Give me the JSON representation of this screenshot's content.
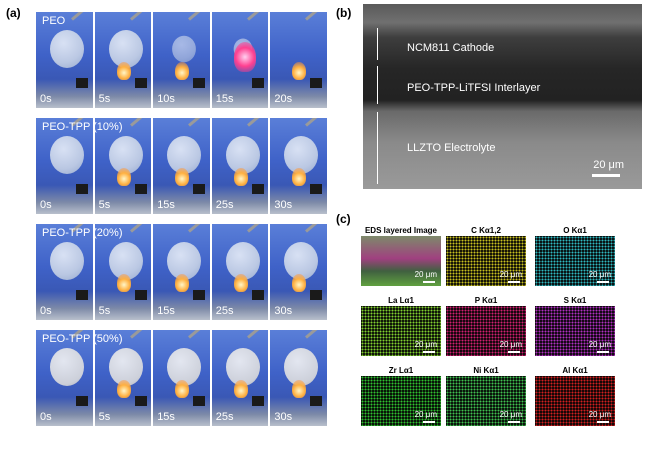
{
  "panels": {
    "a": "(a)",
    "b": "(b)",
    "c": "(c)"
  },
  "rows": [
    {
      "title": "PEO",
      "times": [
        "0s",
        "5s",
        "10s",
        "15s",
        "20s"
      ]
    },
    {
      "title": "PEO-TPP (10%)",
      "times": [
        "0s",
        "5s",
        "15s",
        "25s",
        "30s"
      ]
    },
    {
      "title": "PEO-TPP (20%)",
      "times": [
        "0s",
        "5s",
        "15s",
        "25s",
        "30s"
      ]
    },
    {
      "title": "PEO-TPP (50%)",
      "times": [
        "0s",
        "5s",
        "15s",
        "25s",
        "30s"
      ]
    }
  ],
  "sem": {
    "layers": [
      "NCM811 Cathode",
      "PEO-TPP-LiTFSI Interlayer",
      "LLZTO Electrolyte"
    ],
    "scale": "20 μm"
  },
  "eds": {
    "titles": [
      "EDS layered Image",
      "C Kα1,2",
      "O Kα1",
      "La Lα1",
      "P Kα1",
      "S Kα1",
      "Zr Lα1",
      "Ni Kα1",
      "Al Kα1"
    ],
    "scale": "20 μm",
    "colors": [
      "#6a7a5a",
      "#c8c020",
      "#30b8c0",
      "#80d030",
      "#d02070",
      "#b030c0",
      "#30c030",
      "#40c050",
      "#d02020"
    ]
  }
}
